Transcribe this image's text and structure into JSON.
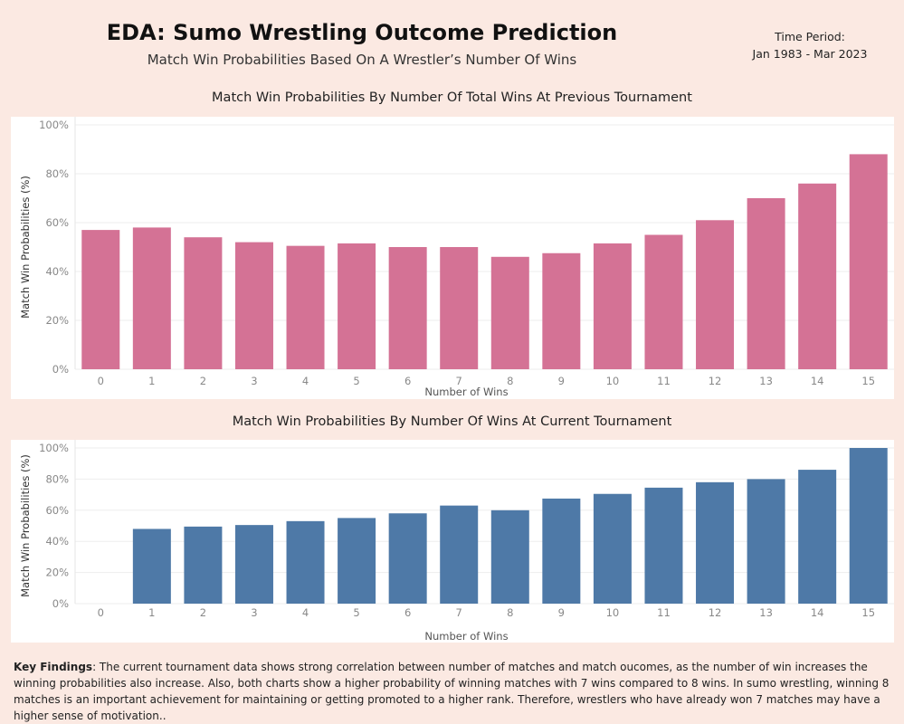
{
  "header": {
    "title": "EDA: Sumo Wrestling Outcome Prediction",
    "subtitle": "Match Win Probabilities Based On A Wrestler’s Number Of Wins",
    "period_label": "Time Period:",
    "period_value": "Jan 1983 - Mar 2023"
  },
  "colors": {
    "background": "#fbe9e2",
    "chart1_bar": "#d47295",
    "chart2_bar": "#4e79a7"
  },
  "chart_data": [
    {
      "type": "bar",
      "title": "Match Win Probabilities By Number Of Total Wins At Previous Tournament",
      "xlabel": "Number of Wins",
      "ylabel": "Match Win Probabilities (%)",
      "categories": [
        "0",
        "1",
        "2",
        "3",
        "4",
        "5",
        "6",
        "7",
        "8",
        "9",
        "10",
        "11",
        "12",
        "13",
        "14",
        "15"
      ],
      "values": [
        57,
        58,
        54,
        52,
        50.5,
        51.5,
        50,
        50,
        46,
        47.5,
        51.5,
        55,
        61,
        70,
        76,
        88
      ],
      "yticks": [
        "0%",
        "20%",
        "40%",
        "60%",
        "80%",
        "100%"
      ],
      "ylim": [
        0,
        100
      ],
      "grid": true
    },
    {
      "type": "bar",
      "title": "Match Win Probabilities By Number Of Wins At Current Tournament",
      "xlabel": "Number of Wins",
      "ylabel": "Match Win Probabilities (%)",
      "categories": [
        "0",
        "1",
        "2",
        "3",
        "4",
        "5",
        "6",
        "7",
        "8",
        "9",
        "10",
        "11",
        "12",
        "13",
        "14",
        "15"
      ],
      "values": [
        0,
        48,
        49.5,
        50.5,
        53,
        55,
        58,
        63,
        60,
        67.5,
        70.5,
        74.5,
        78,
        80,
        86,
        100
      ],
      "yticks": [
        "0%",
        "20%",
        "40%",
        "60%",
        "80%",
        "100%"
      ],
      "ylim": [
        0,
        100
      ],
      "grid": true
    }
  ],
  "findings": {
    "label": "Key Findings",
    "text": ": The current tournament data shows strong correlation between number of matches and match oucomes, as the number of win increases the winning probabilities also increase. Also, both charts show a higher probability of winning matches with 7 wins compared to 8 wins. In sumo wrestling, winning 8 matches is an important achievement for maintaining or getting promoted to a higher rank. Therefore, wrestlers who have already won 7 matches may have a higher sense of motivation.."
  }
}
